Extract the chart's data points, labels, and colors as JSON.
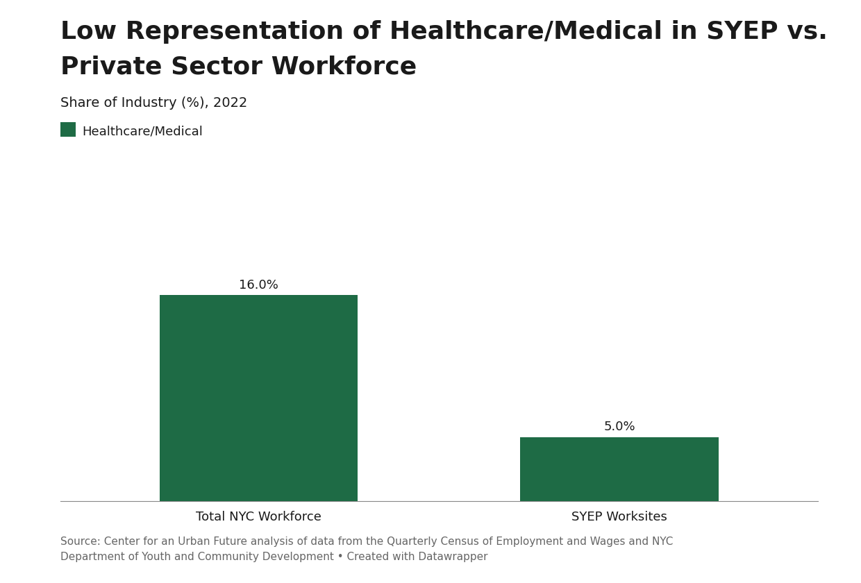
{
  "title_line1": "Low Representation of Healthcare/Medical in SYEP vs.",
  "title_line2": "Private Sector Workforce",
  "subtitle": "Share of Industry (%), 2022",
  "legend_label": "Healthcare/Medical",
  "categories": [
    "Total NYC Workforce",
    "SYEP Worksites"
  ],
  "values": [
    16.0,
    5.0
  ],
  "bar_color": "#1e6b45",
  "bar_width": 0.55,
  "ylim": [
    0,
    19
  ],
  "source_text": "Source: Center for an Urban Future analysis of data from the Quarterly Census of Employment and Wages and NYC\nDepartment of Youth and Community Development • Created with Datawrapper",
  "title_fontsize": 26,
  "subtitle_fontsize": 14,
  "label_fontsize": 13,
  "value_fontsize": 13,
  "source_fontsize": 11,
  "legend_fontsize": 13,
  "background_color": "#ffffff",
  "text_color": "#1a1a1a",
  "source_text_color": "#666666"
}
